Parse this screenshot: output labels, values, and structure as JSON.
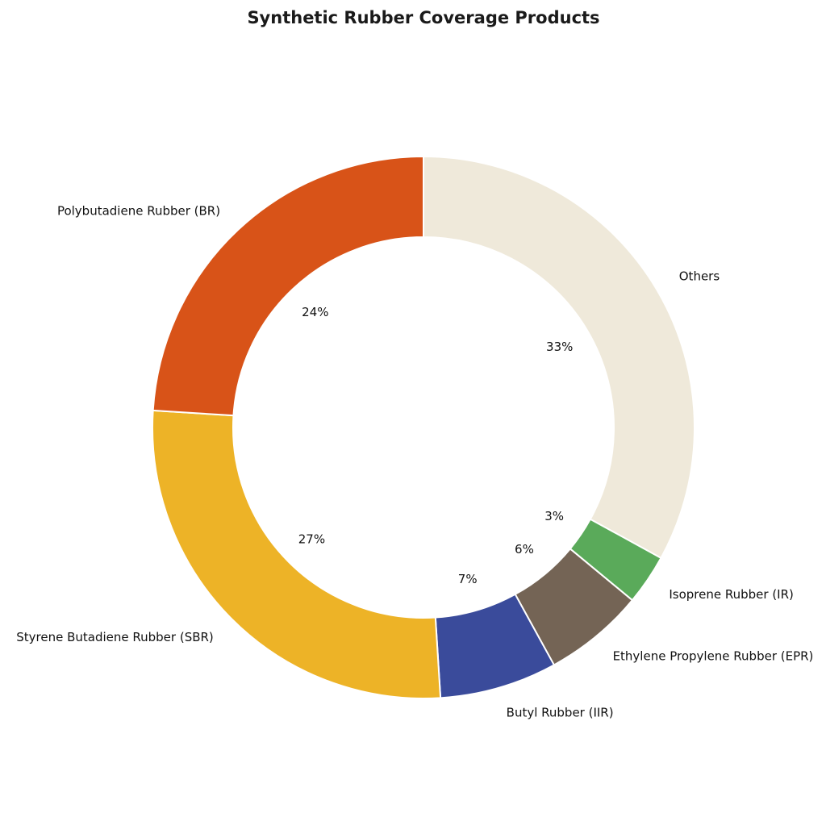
{
  "chart_data": {
    "type": "pie",
    "title": "Synthetic Rubber Coverage Products",
    "donut": true,
    "slices": [
      {
        "label": "Others",
        "value": 33,
        "pct_label": "33%",
        "color": "#EFE9DA"
      },
      {
        "label": "Isoprene Rubber (IR)",
        "value": 3,
        "pct_label": "3%",
        "color": "#5AAA5A"
      },
      {
        "label": "Ethylene Propylene Rubber (EPR)",
        "value": 6,
        "pct_label": "6%",
        "color": "#746455"
      },
      {
        "label": "Butyl Rubber (IIR)",
        "value": 7,
        "pct_label": "7%",
        "color": "#3A4B9B"
      },
      {
        "label": "Styrene Butadiene Rubber (SBR)",
        "value": 27,
        "pct_label": "27%",
        "color": "#EDB327"
      },
      {
        "label": "Polybutadiene Rubber (BR)",
        "value": 24,
        "pct_label": "24%",
        "color": "#D85318"
      }
    ]
  }
}
